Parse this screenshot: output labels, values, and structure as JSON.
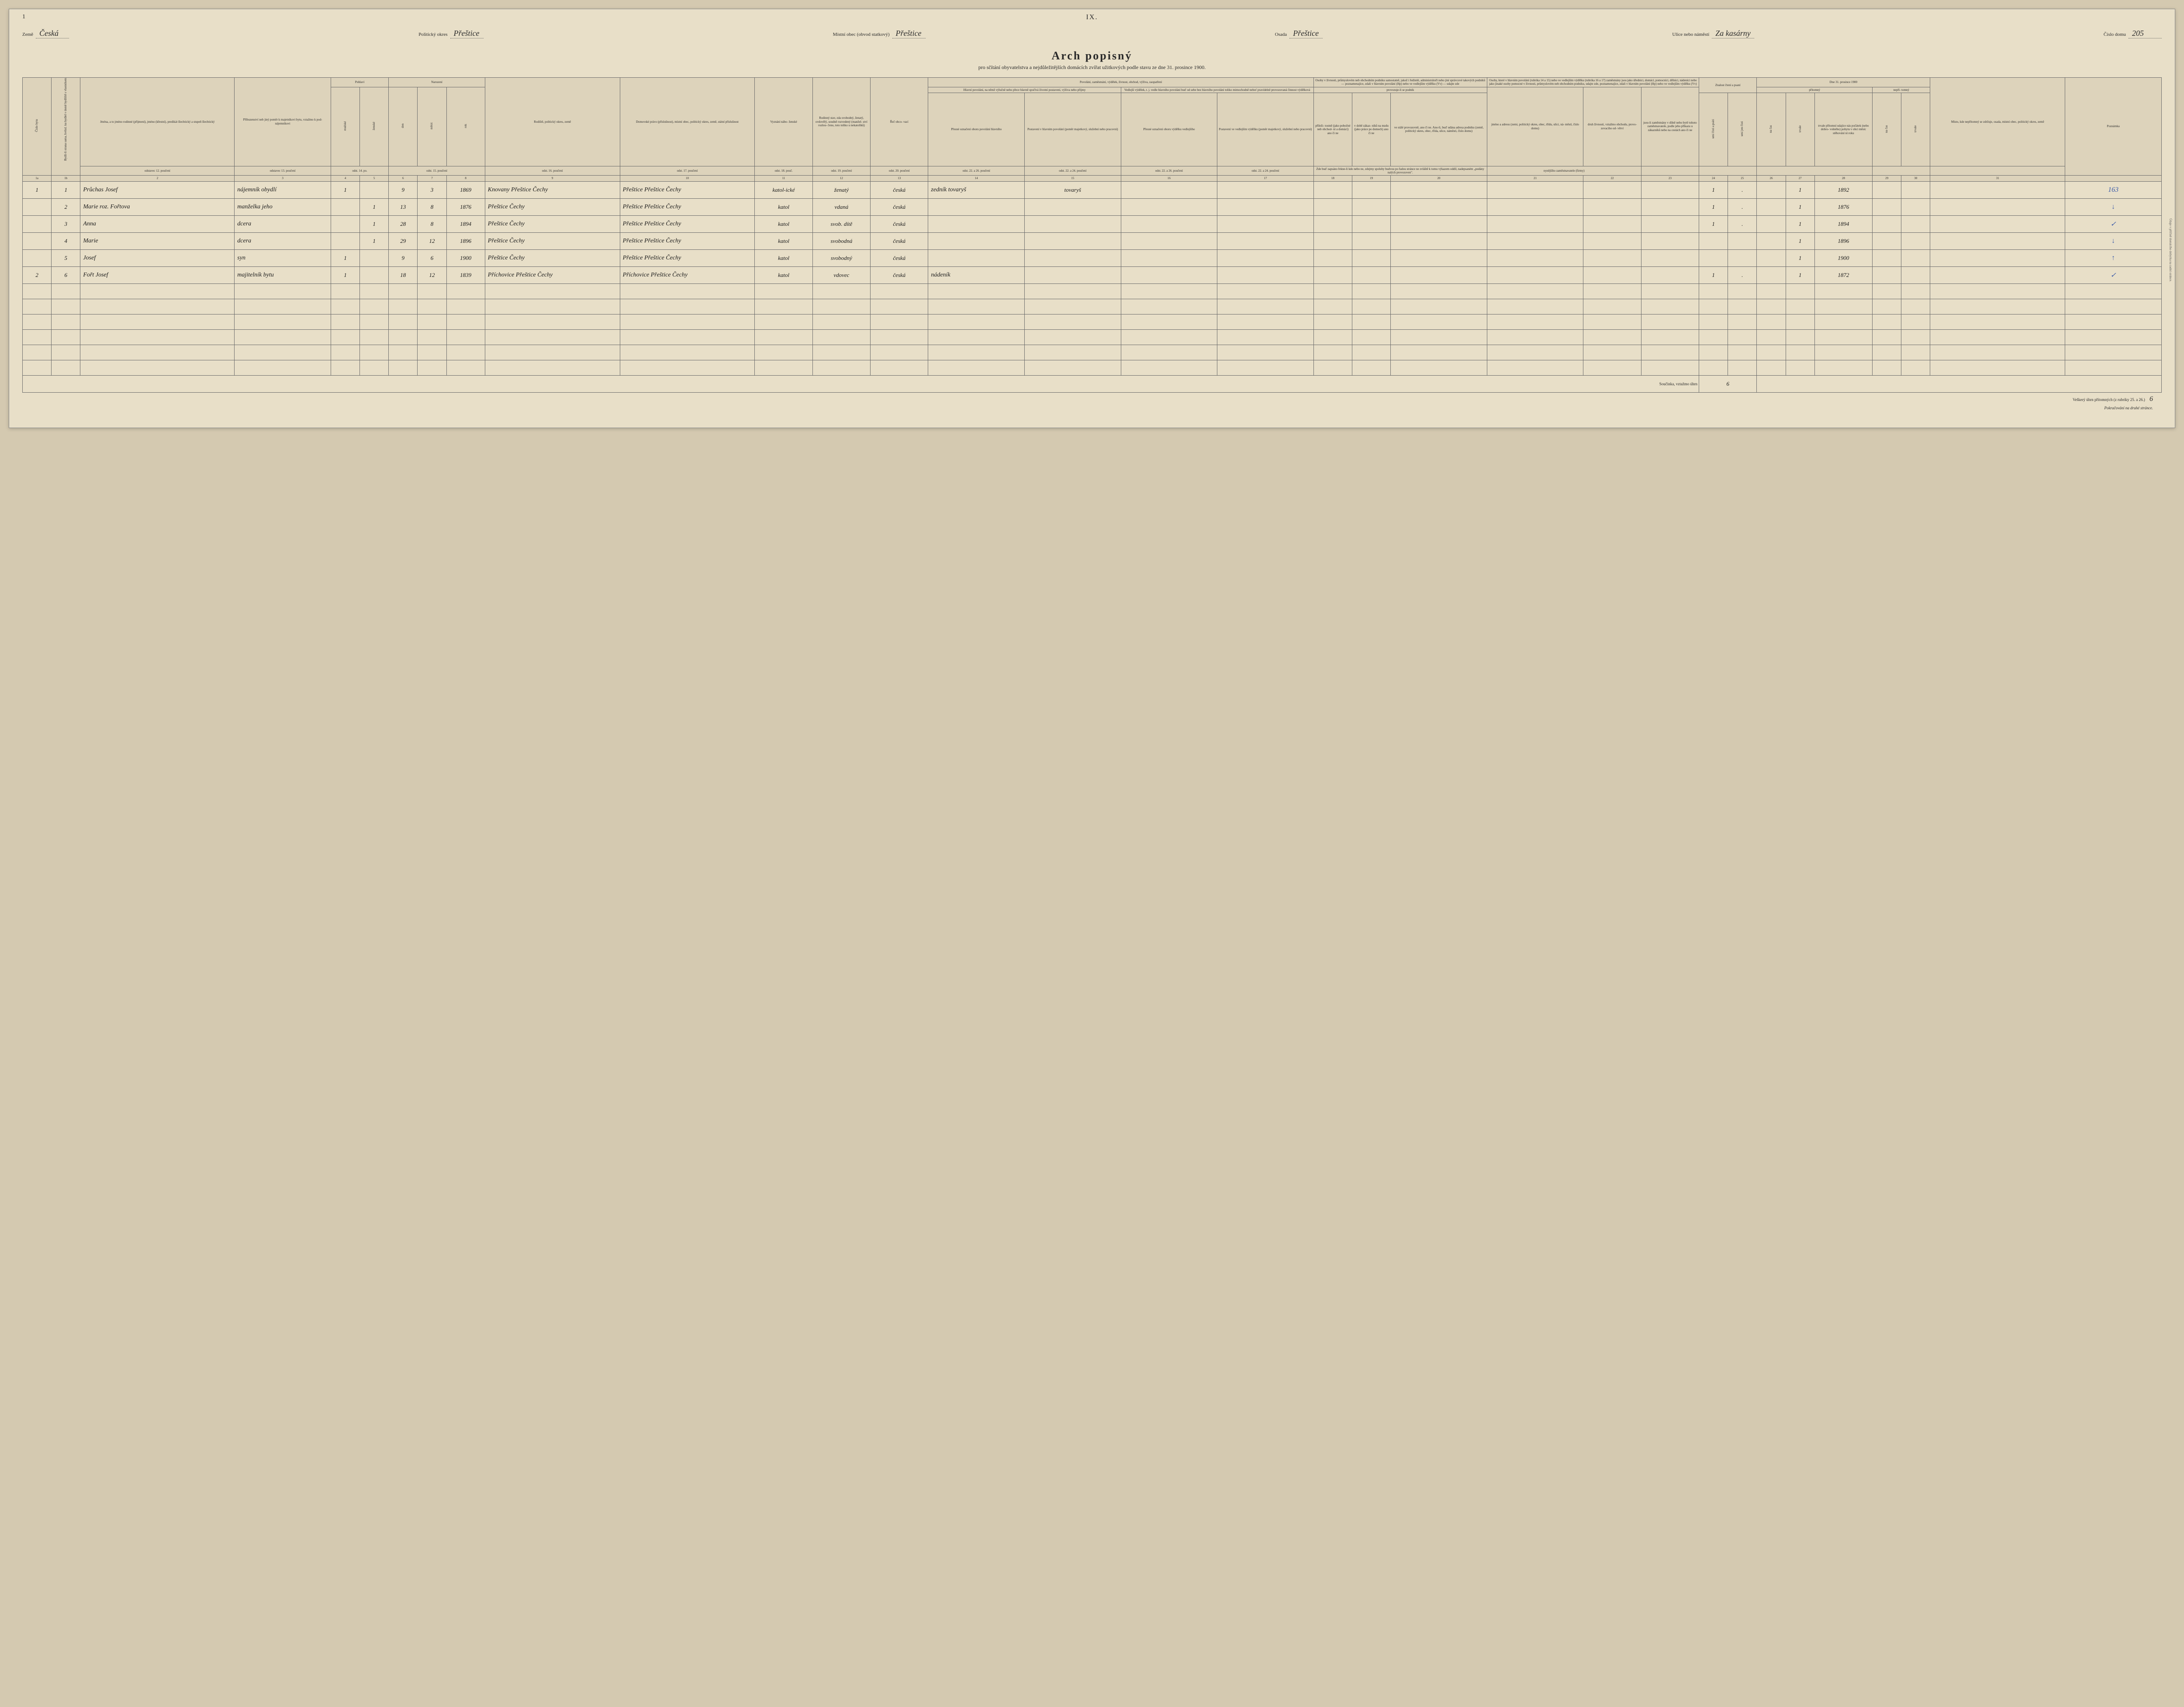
{
  "page": {
    "top_left": "1",
    "roman": "IX.",
    "side_note": "Údaje v příčině domácího dobytka na zadní stránce."
  },
  "header": {
    "country_label": "Země",
    "country_value": "Česká",
    "district_label": "Politický okres",
    "district_value": "Přeštice",
    "municipality_label": "Místní obec (obvod statkový)",
    "municipality_value": "Přeštice",
    "settlement_label": "Osada",
    "settlement_value": "Přeštice",
    "street_label": "Ulice nebo náměstí",
    "street_value": "Za kasárny",
    "houseno_label": "Číslo domu",
    "houseno_value": "205"
  },
  "title": {
    "main": "Arch popisný",
    "sub": "pro sčítání obyvatelstva a nejdůležitějších domácích zvířat užitkových podle stavu ze dne 31. prosince 1900."
  },
  "colnums": {
    "c1a": "1a",
    "c1b": "1b",
    "c2": "2",
    "c3": "3",
    "c4": "4",
    "c5": "5",
    "c6": "6",
    "c7": "7",
    "c8": "8",
    "c9": "9",
    "c10": "10",
    "c11": "11",
    "c12": "12",
    "c13": "13",
    "c14": "14",
    "c15": "15",
    "c16": "16",
    "c17": "17",
    "c18": "18",
    "c19": "19",
    "c20": "20",
    "c21": "21",
    "c22": "22",
    "c23": "23",
    "c24": "24",
    "c25": "25",
    "c26": "26",
    "c27": "27",
    "c28": "28",
    "c29": "29",
    "c30": "30",
    "c31": "31"
  },
  "heads": {
    "byt_no": "Číslo bytu",
    "byt_party": "Bydlí-li strana sama, hvězd. ku bydlel v domě bydliště s vlastníkem vzato, zapisuje se (1.j.spol.)",
    "jmena": "Jména,\na to\njméno rodinné\n(příjmení),\njméno (křestní),\npredikát šlechtický\na\nstupeň šlechtický",
    "jmena_foot": "odstavec 12. poučení",
    "pribuz": "Příbuzenství\nneb jiný poměr\nk majetníkovi\nbytu,\nvztažmo\nk pod-\nnájemníkovi",
    "pribuz_foot": "odstavec 13. poučení",
    "pohlavi": "Pohlaví",
    "muzske": "mužské",
    "zenske": "ženské",
    "pohlavi_foot": "odst. 14. po.",
    "narozeni": "Narození",
    "den": "den",
    "mesic": "měsíc",
    "rok": "rok",
    "narozeni_foot": "odst. 15. poučení",
    "rodiste": "Rodiště,\npolitický okres,\nzemě",
    "rodiste_foot": "odst. 16. poučení",
    "domov": "Domovské právo\n(příslušnost),\nmístní obec,\npolitický okres,\nzemě,\nstátní příslušnost",
    "domov_foot": "odst. 17. poučení",
    "vyznani": "Vyznání\nnábo-\nženské",
    "vyznani_foot": "odst. 18. pouč.",
    "stav": "Rodinný\nstav,\nzda\nsvobodný,\nženatý,\novdovělý,\nsoudně\nrozvedený\n(manžel-\nství\nrozlou-\nčeno, toto\ntoliko u\nnekatolíků)",
    "stav_foot": "odst. 19. poučení",
    "rec": "Řeč\nobco-\nvací",
    "rec_foot": "odst. 20. poučení",
    "povolani_group": "Povolání, zaměstnání, výdělek, živnost, obchod, výživa, zaopatření",
    "hlavni_pov": "Hlavní povolání,\nna němž výlučně nebo přece\nhlavně spočívá\nživotní postavení, výživa\nnebo příjmy",
    "hlpov_a": "Přesné\noznačení\noboru povolání\nhlavního",
    "hlpov_b": "Postavení\nv hlavním\npovolání\n(poměr\nmajetkový,\nslužební nebo\npracovní)",
    "hlpov_foot_a": "odst. 22. a 26. poučení",
    "hlpov_foot_b": "odst. 22. a 24. poučení",
    "vedl_pov": "Vedlejší výdělek,\nt. j. vedle hlavního povolání\nbuď od sebe bez hlavního\npovolání toliko mimochodně\nneboť pravidelně provozovaná\nčinnost výdělková",
    "vedpov_a": "Přesné\noznačení\noboru výdělku\nvedlejšího",
    "vedpov_b": "Postavení\nve vedlejším\nvýdělku\n(poměr\nmajetkový,\nslužební nebo\npracovní)",
    "osoby_group": "Osoby v živnosti, průmyslovém neb obchodním podniku samostatně, jakož i ředitelé, administrátoři nebo jiní správcové takových podniků — poznamenajíce, zdali v hlavním povolání (Hp) nebo ve vedlejším výdělku (Vv) — udajte zde",
    "osoby_sub": "provozuje-li se podnik",
    "os_a": "příleži-\ntostně\n(jako\npobočné\nneb\nobchod-\nní a\ndomácí)\nano\nči ne",
    "os_b": "v době\nzákaz-\nníků na\nmzdu\n(jako\npráce po\ndomech)\nano\nči ne",
    "os_c": "ve stálé\nprovozovně,\nano či ne.\nAno-li, buď udána\nadresa podniku\n(země, politický\nokres, obec, třída,\nulice, náměstí,\nčíslo domu)",
    "osoby2_group": "Osoby, které v hlavním povolání (rubrika 14 a 15) nebo ve vedlejším výdělku (rubrika 16 a 17) zaměstnány jsou jako úředníci, domácí, pomocníci, dělníci, nádeníci nebo jako jinaké osoby pomocné v živnosti, průmyslovém neb obchodním podniku, udajte zde, poznamenajíce, zdali v hlavním povolání (Hp) nebo ve vedlejším výdělku (Vv)",
    "os2_a": "jméno a adresu\n(zemi, politický\nokres, obec,\ntřídu, ulici, ná-\nměstí, číslo\ndomu)",
    "os2_b": "druh živnosti,\nvztažmo\nobchodu, provo-\nzovaciho od-\nvětví",
    "os2_c": "jsou-li\nzaměstnány\nv dílně nebo\nbytě tohoto\nzaměstnavatele,\npodle jeho\npříkazu\nu zákazníků\nnebo na cestách\nano či ne",
    "os2_foot": "nynějšího zaměstnavatele (firmy)",
    "znalost": "Znalost\nčtení\na psaní",
    "zn_a": "umí čísti a psáti",
    "zn_b": "umí jen čísti",
    "date_group": "Dne 31. prosince 1900",
    "pritomny": "přítomný",
    "pri_a": "na čas",
    "pri_b": "trvale",
    "trvale_box": "trvale\npřítomní\nudajíce nás\npočátek\n(nebo dobro-\nvolného)\npobytu\nv obci\nměsíc\nstěhování\nní roku",
    "nepritomny": "nepří-\ntomný",
    "nep_a": "na čas",
    "nep_b": "trvale",
    "misto": "Místo, kde\nnepřítomný\nse zdržuje,\nosada,\nmístní obec,\npolitický okres,\nzemě",
    "poznamka": "Poznámka",
    "side_text": "Zde buď zapsáno řekne-li kdo nebo ne, zdejmy spoluby budvou po řadou stránce ne zvláště k tomu výkazem oddíl, nadepsaném „podány nalých provozoven\"."
  },
  "rows": [
    {
      "byt": "1",
      "party": "1",
      "surname": "Průchas",
      "firstname": "Josef",
      "relation": "nájemník obydlí",
      "male": "1",
      "female": "",
      "day": "9",
      "month": "3",
      "year": "1869",
      "birthplace": "Knovany Přeštice Čechy",
      "domicile": "Přeštice Přeštice Čechy",
      "religion": "katol-ické",
      "status": "ženatý",
      "language": "česká",
      "occupation": "zedník tovaryš",
      "position": "tovaryš",
      "lit_rw": "1",
      "lit_r": ".",
      "pres_temp": "",
      "pres_perm": "1",
      "since": "1892",
      "remark": "163"
    },
    {
      "byt": "",
      "party": "2",
      "surname": "Marie",
      "firstname": "roz. Fořtova",
      "relation": "manželka jeho",
      "male": "",
      "female": "1",
      "day": "13",
      "month": "8",
      "year": "1876",
      "birthplace": "Přeštice Čechy",
      "domicile": "Přeštice Přeštice Čechy",
      "religion": "katol",
      "status": "vdaná",
      "language": "česká",
      "occupation": "",
      "position": "",
      "lit_rw": "1",
      "lit_r": ".",
      "pres_temp": "",
      "pres_perm": "1",
      "since": "1876",
      "remark": "↓"
    },
    {
      "byt": "",
      "party": "3",
      "surname": "Anna",
      "firstname": "",
      "relation": "dcera",
      "male": "",
      "female": "1",
      "day": "28",
      "month": "8",
      "year": "1894",
      "birthplace": "Přeštice Čechy",
      "domicile": "Přeštice Přeštice Čechy",
      "religion": "katol",
      "status": "svob. dítě",
      "language": "česká",
      "occupation": "",
      "position": "",
      "lit_rw": "1",
      "lit_r": ".",
      "pres_temp": "",
      "pres_perm": "1",
      "since": "1894",
      "remark": "✓"
    },
    {
      "byt": "",
      "party": "4",
      "surname": "Marie",
      "firstname": "",
      "relation": "dcera",
      "male": "",
      "female": "1",
      "day": "29",
      "month": "12",
      "year": "1896",
      "birthplace": "Přeštice Čechy",
      "domicile": "Přeštice Přeštice Čechy",
      "religion": "katol",
      "status": "svobodná",
      "language": "česká",
      "occupation": "",
      "position": "",
      "lit_rw": "",
      "lit_r": "",
      "pres_temp": "",
      "pres_perm": "1",
      "since": "1896",
      "remark": "↓"
    },
    {
      "byt": "",
      "party": "5",
      "surname": "Josef",
      "firstname": "",
      "relation": "syn",
      "male": "1",
      "female": "",
      "day": "9",
      "month": "6",
      "year": "1900",
      "birthplace": "Přeštice Čechy",
      "domicile": "Přeštice Přeštice Čechy",
      "religion": "katol",
      "status": "svobodný",
      "language": "česká",
      "occupation": "",
      "position": "",
      "lit_rw": "",
      "lit_r": "",
      "pres_temp": "",
      "pres_perm": "1",
      "since": "1900",
      "remark": "↑"
    },
    {
      "byt": "2",
      "party": "6",
      "surname": "Fořt",
      "firstname": "Josef",
      "relation": "majitelník bytu",
      "male": "1",
      "female": "",
      "day": "18",
      "month": "12",
      "year": "1839",
      "birthplace": "Příchovice Přeštice Čechy",
      "domicile": "Příchovice Přeštice Čechy",
      "religion": "katol",
      "status": "vdovec",
      "language": "česká",
      "occupation": "nádeník",
      "position": "",
      "lit_rw": "1",
      "lit_r": ".",
      "pres_temp": "",
      "pres_perm": "1",
      "since": "1872",
      "remark": "✓"
    }
  ],
  "footer": {
    "subtotal_label": "Součinka, vztažmo úhrn",
    "subtotal_value": "6",
    "total_label": "Veškerý úhrn přítomných (z rubriky 25. a 26.)",
    "total_value": "6",
    "continuation": "Pokračování na druhé stránce."
  }
}
